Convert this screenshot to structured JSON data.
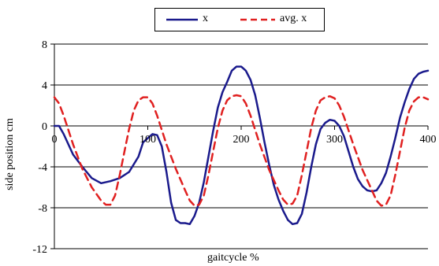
{
  "chart_data": {
    "type": "line",
    "title": "",
    "xlabel": "gaitcycle %",
    "ylabel": "side position cm",
    "xlim": [
      0,
      400
    ],
    "ylim": [
      -12,
      8
    ],
    "x_ticks": [
      "0",
      "100",
      "200",
      "300",
      "400"
    ],
    "y_ticks": [
      "8",
      "4",
      "0",
      "-4",
      "-8",
      "-12"
    ],
    "grid": "horizontal",
    "legend_position": "top-center",
    "series": [
      {
        "name": "x",
        "color": "#1a1a8c",
        "style": "solid",
        "points": [
          [
            0,
            0
          ],
          [
            5,
            0
          ],
          [
            10,
            -0.8
          ],
          [
            20,
            -2.8
          ],
          [
            30,
            -4
          ],
          [
            40,
            -5.1
          ],
          [
            50,
            -5.6
          ],
          [
            60,
            -5.4
          ],
          [
            70,
            -5.1
          ],
          [
            80,
            -4.5
          ],
          [
            90,
            -3
          ],
          [
            95,
            -1.6
          ],
          [
            100,
            -1.2
          ],
          [
            105,
            -0.8
          ],
          [
            110,
            -0.9
          ],
          [
            115,
            -2
          ],
          [
            120,
            -4.5
          ],
          [
            125,
            -7.5
          ],
          [
            130,
            -9.2
          ],
          [
            135,
            -9.5
          ],
          [
            140,
            -9.5
          ],
          [
            145,
            -9.6
          ],
          [
            150,
            -8.8
          ],
          [
            155,
            -7.5
          ],
          [
            160,
            -5.5
          ],
          [
            165,
            -3
          ],
          [
            170,
            -0.5
          ],
          [
            175,
            1.8
          ],
          [
            180,
            3.3
          ],
          [
            185,
            4.3
          ],
          [
            190,
            5.4
          ],
          [
            195,
            5.8
          ],
          [
            200,
            5.8
          ],
          [
            205,
            5.4
          ],
          [
            210,
            4.5
          ],
          [
            215,
            3
          ],
          [
            220,
            0.8
          ],
          [
            225,
            -1.6
          ],
          [
            230,
            -3.8
          ],
          [
            235,
            -5.8
          ],
          [
            240,
            -7.2
          ],
          [
            245,
            -8.3
          ],
          [
            250,
            -9.2
          ],
          [
            255,
            -9.6
          ],
          [
            260,
            -9.5
          ],
          [
            265,
            -8.6
          ],
          [
            270,
            -6.5
          ],
          [
            275,
            -4
          ],
          [
            280,
            -1.8
          ],
          [
            285,
            -0.3
          ],
          [
            290,
            0.3
          ],
          [
            295,
            0.6
          ],
          [
            300,
            0.5
          ],
          [
            305,
            0
          ],
          [
            310,
            -1
          ],
          [
            315,
            -2.5
          ],
          [
            320,
            -4
          ],
          [
            325,
            -5.2
          ],
          [
            330,
            -5.9
          ],
          [
            335,
            -6.3
          ],
          [
            340,
            -6.4
          ],
          [
            345,
            -6.3
          ],
          [
            350,
            -5.6
          ],
          [
            355,
            -4.6
          ],
          [
            360,
            -3
          ],
          [
            365,
            -1.2
          ],
          [
            370,
            0.8
          ],
          [
            375,
            2.3
          ],
          [
            380,
            3.6
          ],
          [
            385,
            4.6
          ],
          [
            390,
            5.1
          ],
          [
            395,
            5.3
          ],
          [
            400,
            5.4
          ]
        ]
      },
      {
        "name": "avg. x",
        "color": "#e02020",
        "style": "dashed",
        "points": [
          [
            0,
            2.8
          ],
          [
            5,
            2.2
          ],
          [
            10,
            1
          ],
          [
            20,
            -1.8
          ],
          [
            30,
            -4.2
          ],
          [
            40,
            -6
          ],
          [
            50,
            -7.3
          ],
          [
            55,
            -7.7
          ],
          [
            60,
            -7.7
          ],
          [
            65,
            -6.8
          ],
          [
            70,
            -4.8
          ],
          [
            75,
            -2.5
          ],
          [
            80,
            -0.3
          ],
          [
            85,
            1.5
          ],
          [
            90,
            2.5
          ],
          [
            95,
            2.8
          ],
          [
            100,
            2.8
          ],
          [
            105,
            2.2
          ],
          [
            110,
            1
          ],
          [
            120,
            -1.8
          ],
          [
            130,
            -4.2
          ],
          [
            140,
            -6.3
          ],
          [
            145,
            -7.3
          ],
          [
            150,
            -7.8
          ],
          [
            155,
            -7.7
          ],
          [
            160,
            -6.8
          ],
          [
            165,
            -4.8
          ],
          [
            170,
            -2.5
          ],
          [
            175,
            -0.2
          ],
          [
            180,
            1.5
          ],
          [
            185,
            2.5
          ],
          [
            190,
            2.9
          ],
          [
            195,
            3
          ],
          [
            200,
            2.9
          ],
          [
            205,
            2.2
          ],
          [
            210,
            1
          ],
          [
            220,
            -1.8
          ],
          [
            230,
            -4.3
          ],
          [
            240,
            -6.3
          ],
          [
            245,
            -7.2
          ],
          [
            250,
            -7.7
          ],
          [
            255,
            -7.6
          ],
          [
            260,
            -6.8
          ],
          [
            265,
            -4.8
          ],
          [
            270,
            -2.5
          ],
          [
            275,
            -0.2
          ],
          [
            280,
            1.5
          ],
          [
            285,
            2.5
          ],
          [
            290,
            2.8
          ],
          [
            295,
            2.9
          ],
          [
            300,
            2.7
          ],
          [
            305,
            2
          ],
          [
            310,
            0.9
          ],
          [
            320,
            -1.8
          ],
          [
            330,
            -4.3
          ],
          [
            340,
            -6.3
          ],
          [
            345,
            -7.3
          ],
          [
            350,
            -7.8
          ],
          [
            355,
            -7.7
          ],
          [
            360,
            -6.8
          ],
          [
            365,
            -4.8
          ],
          [
            370,
            -2.5
          ],
          [
            375,
            -0.2
          ],
          [
            380,
            1.5
          ],
          [
            385,
            2.4
          ],
          [
            390,
            2.8
          ],
          [
            395,
            2.8
          ],
          [
            400,
            2.6
          ]
        ]
      }
    ]
  }
}
